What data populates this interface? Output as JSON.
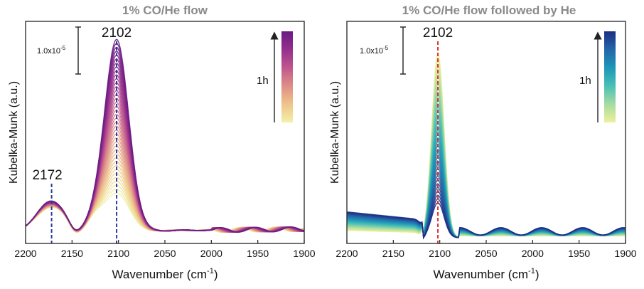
{
  "chart_data": [
    {
      "type": "line",
      "title": "1% CO/He flow",
      "xlabel": "Wavenumber (cm",
      "xlabel_sup": "-1",
      "xlabel_end": ")",
      "ylabel": "Kubelka-Munk (a.u.)",
      "xlim": [
        2200,
        1900
      ],
      "x_reversed": true,
      "x_ticks": [
        "2200",
        "2150",
        "2100",
        "2050",
        "2000",
        "1950",
        "1900"
      ],
      "y_ticks_shown": false,
      "scale_bar_label": "1.0x10",
      "scale_bar_exp": "-5",
      "time_label": "1h",
      "time_direction": "up",
      "colormap": [
        "#f2f0a8",
        "#eec48a",
        "#de8f86",
        "#c0578e",
        "#952f8c",
        "#6a1b84"
      ],
      "colormap_name": "yellow-to-purple",
      "peaks": [
        {
          "label": "2172",
          "x": 2172,
          "line_color": "#2b3c9b"
        },
        {
          "label": "2102",
          "x": 2102,
          "line_color": "#2b3c9b"
        }
      ],
      "series_count": 40,
      "series_evolution": "CO band at 2102 grows with time; 2172 band shrinks",
      "representative_series": [
        {
          "time": "start",
          "x": [
            2200,
            2172,
            2150,
            2130,
            2102,
            2070,
            2050,
            2000,
            1950,
            1900
          ],
          "y": [
            0.05,
            0.13,
            0.05,
            0.2,
            0.22,
            0.06,
            0.03,
            0.02,
            0.02,
            0.02
          ]
        },
        {
          "time": "1h",
          "x": [
            2200,
            2172,
            2150,
            2130,
            2102,
            2070,
            2050,
            2000,
            1950,
            1900
          ],
          "y": [
            0.06,
            0.16,
            0.06,
            0.22,
            1.0,
            0.12,
            0.04,
            0.02,
            0.02,
            0.01
          ]
        }
      ]
    },
    {
      "type": "line",
      "title": "1% CO/He flow followed by He",
      "xlabel": "Wavenumber (cm",
      "xlabel_sup": "-1",
      "xlabel_end": ")",
      "ylabel": "Kubelka-Munk (a.u.)",
      "xlim": [
        2200,
        1900
      ],
      "x_reversed": true,
      "x_ticks": [
        "2200",
        "2150",
        "2100",
        "2050",
        "2000",
        "1950",
        "1900"
      ],
      "y_ticks_shown": false,
      "scale_bar_label": "1.0x10",
      "scale_bar_exp": "-5",
      "time_label": "1h",
      "time_direction": "up",
      "colormap": [
        "#eef09a",
        "#a6dba2",
        "#49c0b5",
        "#1e97b8",
        "#2466a8",
        "#1c2d84"
      ],
      "colormap_name": "yellow-to-navy",
      "peaks": [
        {
          "label": "2102",
          "x": 2102,
          "line_color": "#e0302a"
        }
      ],
      "series_count": 40,
      "series_evolution": "CO band at 2102 decays under He purge",
      "representative_series": [
        {
          "time": "start",
          "x": [
            2200,
            2150,
            2120,
            2102,
            2080,
            2050,
            2000,
            1950,
            1900
          ],
          "y": [
            0.04,
            0.03,
            0.02,
            1.0,
            0.05,
            0.01,
            0.01,
            0.01,
            0.01
          ]
        },
        {
          "time": "1h",
          "x": [
            2200,
            2150,
            2120,
            2102,
            2080,
            2050,
            2000,
            1950,
            1900
          ],
          "y": [
            0.14,
            0.1,
            0.03,
            0.19,
            0.03,
            0.02,
            0.04,
            0.03,
            0.04
          ]
        }
      ]
    }
  ]
}
